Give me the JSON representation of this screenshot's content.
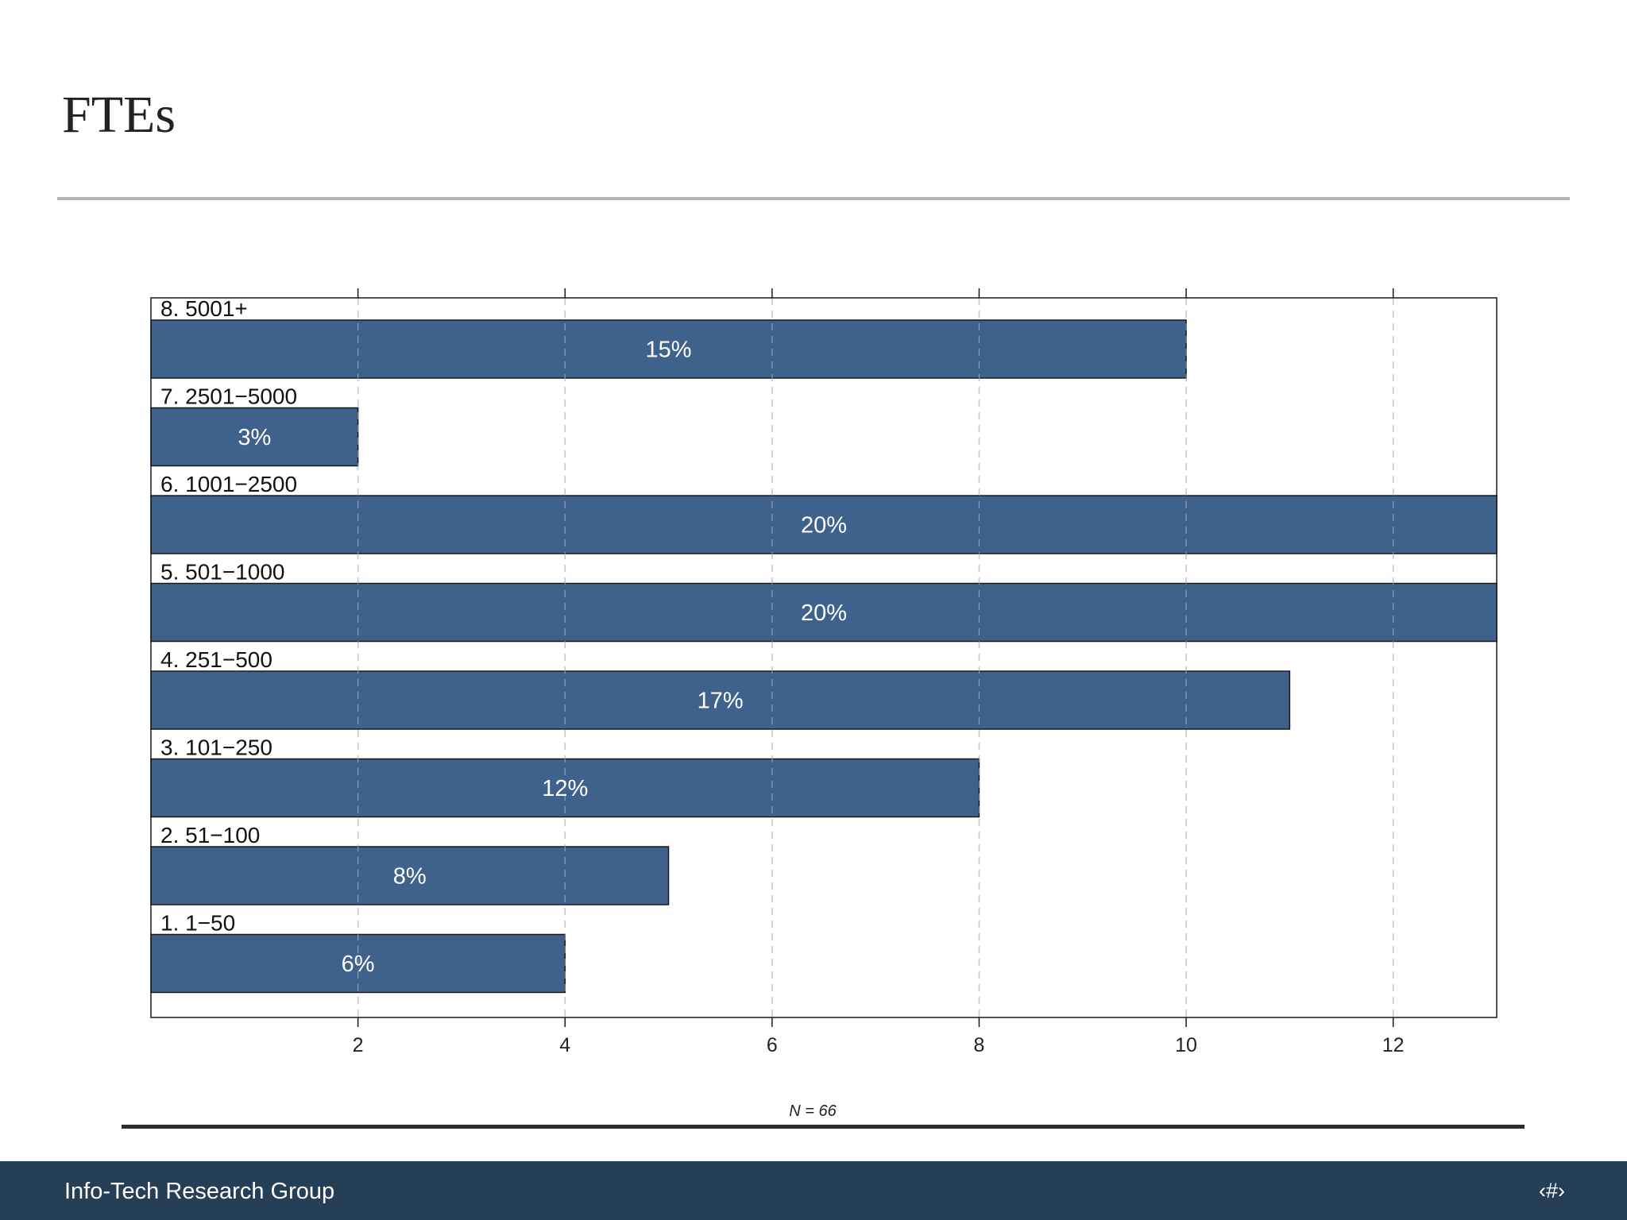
{
  "slide": {
    "title": "FTEs"
  },
  "footer": {
    "brand": "Info-Tech Research Group",
    "page_marker": "‹#›"
  },
  "colors": {
    "bar": "#3f628c",
    "footer_bg": "#243f56",
    "title_rule": "#b3b3b3"
  },
  "chart_data": {
    "type": "bar",
    "orientation": "horizontal",
    "categories": [
      "8. 5001+",
      "7. 2501−5000",
      "6. 1001−2500",
      "5. 501−1000",
      "4. 251−500",
      "3. 101−250",
      "2. 51−100",
      "1. 1−50"
    ],
    "values": [
      10,
      2,
      13,
      13,
      11,
      8,
      5,
      4
    ],
    "data_labels": [
      "15%",
      "3%",
      "20%",
      "20%",
      "17%",
      "12%",
      "8%",
      "6%"
    ],
    "xlim": [
      0,
      13
    ],
    "xticks": [
      2,
      4,
      6,
      8,
      10,
      12
    ],
    "grid": "vertical dashed",
    "annotation": "N = 66"
  }
}
